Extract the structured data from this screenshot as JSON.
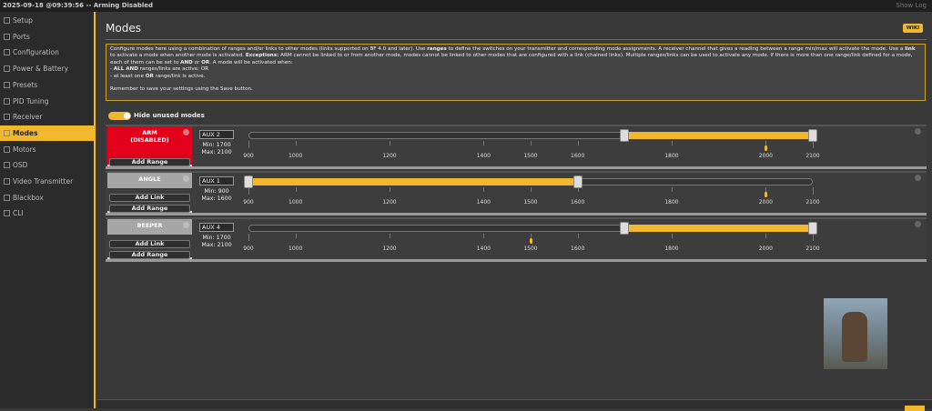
{
  "top_bar": {
    "status": "2025-09-18 @09:39:56 -- Arming Disabled",
    "show_log": "Show Log"
  },
  "sidebar": {
    "items": [
      "Setup",
      "Ports",
      "Configuration",
      "Power & Battery",
      "Presets",
      "PID Tuning",
      "Receiver",
      "Modes",
      "Motors",
      "OSD",
      "Video Transmitter",
      "Blackbox",
      "CLI"
    ],
    "active": 7
  },
  "header": {
    "title": "Modes",
    "wiki": "WIKI"
  },
  "info": [
    [
      {
        "text": "Configure modes here using a combination of ranges and/or links to other modes (links supported on BF 4.0 and later). Use "
      },
      {
        "text": "ranges",
        "bold": true
      },
      {
        "text": " to define the switches on your transmitter and corresponding mode assignments. A receiver channel that gives a reading between a range min/max will activate the mode. Use a "
      },
      {
        "text": "link",
        "bold": true
      },
      {
        "text": " to activate a mode when another mode is activated. "
      },
      {
        "text": "Exceptions:",
        "bold": true
      },
      {
        "text": " ARM cannot be linked to or from another mode, modes cannot be linked to other modes that are configured with a link (chained links). Multiple ranges/links can be used to activate any mode. If there is more than one range/link defined for a mode, each of them can be set to "
      },
      {
        "text": "AND",
        "bold": true
      },
      {
        "text": " or "
      },
      {
        "text": "OR",
        "bold": true
      },
      {
        "text": ". A mode will be activated when:"
      }
    ],
    [
      {
        "text": "- "
      },
      {
        "text": "ALL AND",
        "bold": true
      },
      {
        "text": " ranges/links are active; OR"
      }
    ],
    [
      {
        "text": "- at least one "
      },
      {
        "text": "OR",
        "bold": true
      },
      {
        "text": " range/link is active."
      }
    ],
    [
      {
        "text": "Remember to save your settings using the Save button."
      }
    ]
  ],
  "toggle_label": "Hide unused modes",
  "labels": {
    "min": "Min:",
    "max": "Max:"
  },
  "scale": {
    "min": 900,
    "max": 2100,
    "ticks": [
      900,
      1000,
      1200,
      1400,
      1500,
      1600,
      1800,
      2000,
      2100
    ]
  },
  "modes": [
    {
      "name": "ARM",
      "state": "(DISABLED)",
      "color": "#e2001a",
      "channel": "AUX 2",
      "min": 1700,
      "max": 2100,
      "channel_value": 2000,
      "buttons": [
        "Add Range"
      ]
    },
    {
      "name": "ANGLE",
      "color": "#a6a6a6",
      "channel": "AUX 1",
      "min": 900,
      "max": 1600,
      "channel_value": 2000,
      "buttons": [
        "Add Link",
        "Add Range"
      ]
    },
    {
      "name": "BEEPER",
      "color": "#a6a6a6",
      "channel": "AUX 4",
      "min": 1700,
      "max": 2100,
      "channel_value": 1500,
      "buttons": [
        "Add Link",
        "Add Range"
      ]
    }
  ]
}
